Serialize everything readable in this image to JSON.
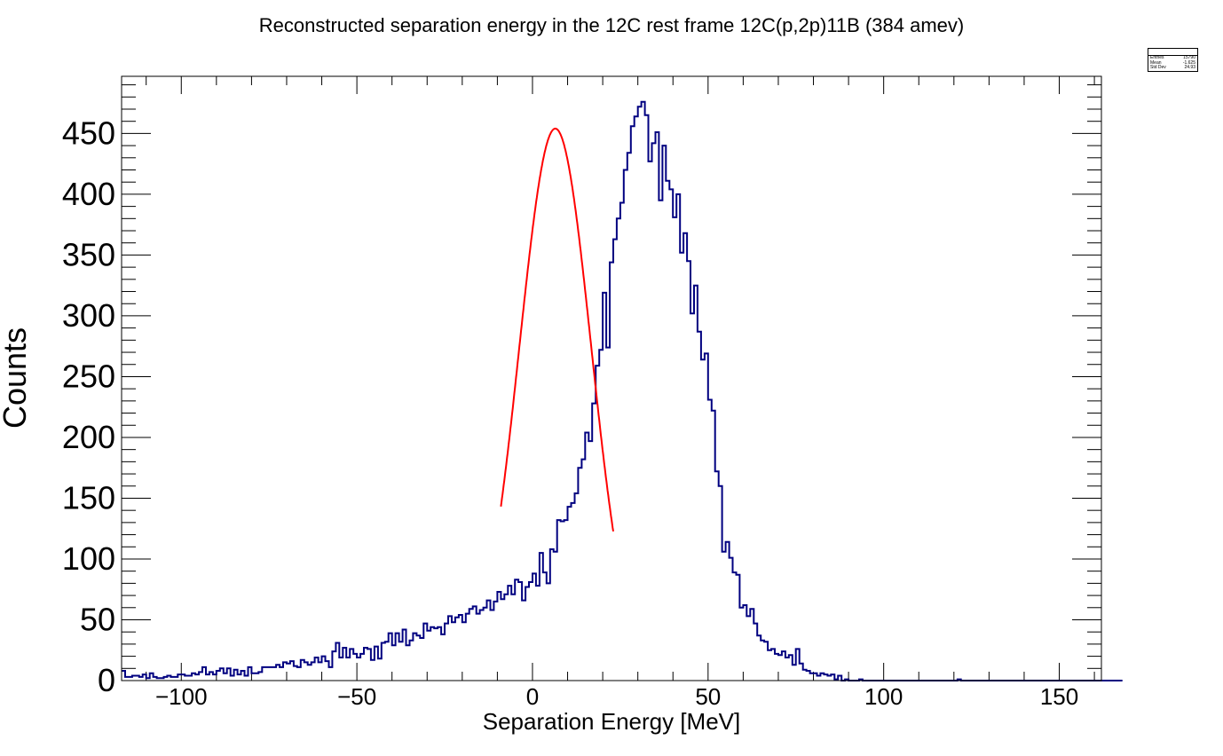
{
  "chart_data": {
    "type": "histogram",
    "title": "Reconstructed separation energy in the 12C rest frame 12C(p,2p)11B (384 amev)",
    "xlabel": "Separation Energy [MeV]",
    "ylabel": "Counts",
    "xlim": [
      -117,
      162
    ],
    "ylim": [
      0,
      497
    ],
    "x_ticks": [
      -100,
      -50,
      0,
      50,
      100,
      150
    ],
    "x_tick_labels": [
      "−100",
      "−50",
      "0",
      "50",
      "100",
      "150"
    ],
    "y_ticks": [
      0,
      50,
      100,
      150,
      200,
      250,
      300,
      350,
      400,
      450
    ],
    "y_tick_labels": [
      "0",
      "50",
      "100",
      "150",
      "200",
      "250",
      "300",
      "350",
      "400",
      "450"
    ],
    "bin_start": -117,
    "bin_width": 1,
    "series": [
      {
        "values": [
          8,
          3,
          3,
          4,
          4,
          3,
          5,
          2,
          6,
          3,
          2,
          2,
          3,
          4,
          3,
          3,
          5,
          5,
          4,
          4,
          6,
          5,
          7,
          11,
          5,
          7,
          5,
          8,
          10,
          6,
          10,
          4,
          9,
          5,
          8,
          4,
          11,
          6,
          6,
          7,
          11,
          11,
          11,
          11,
          13,
          11,
          15,
          14,
          16,
          12,
          11,
          17,
          15,
          13,
          15,
          19,
          15,
          20,
          16,
          11,
          24,
          31,
          19,
          27,
          19,
          26,
          22,
          19,
          22,
          27,
          26,
          17,
          28,
          18,
          31,
          32,
          39,
          29,
          39,
          32,
          42,
          29,
          33,
          39,
          37,
          35,
          47,
          41,
          44,
          43,
          44,
          38,
          47,
          53,
          48,
          52,
          54,
          48,
          55,
          59,
          61,
          55,
          58,
          60,
          66,
          58,
          65,
          73,
          67,
          71,
          78,
          71,
          83,
          81,
          66,
          77,
          81,
          88,
          78,
          105,
          89,
          80,
          108,
          106,
          132,
          131,
          132,
          143,
          146,
          154,
          175,
          182,
          204,
          197,
          228,
          259,
          272,
          319,
          274,
          344,
          363,
          380,
          393,
          420,
          434,
          456,
          464,
          472,
          476,
          465,
          427,
          442,
          451,
          395,
          440,
          411,
          404,
          381,
          400,
          352,
          368,
          345,
          302,
          325,
          287,
          264,
          269,
          231,
          222,
          172,
          160,
          106,
          114,
          101,
          89,
          87,
          60,
          62,
          53,
          59,
          47,
          37,
          33,
          32,
          25,
          26,
          22,
          21,
          24,
          19,
          21,
          13,
          26,
          14,
          9,
          8,
          6,
          6,
          4,
          6,
          5,
          4,
          5,
          1,
          4,
          0,
          1,
          0,
          0,
          0,
          1,
          0,
          0,
          0,
          0,
          0,
          0,
          0,
          0,
          0,
          0,
          0,
          0,
          0,
          0,
          0,
          0,
          0,
          0,
          0,
          0,
          0,
          0,
          0,
          0,
          0,
          0,
          0,
          1,
          0,
          0,
          0,
          0,
          0,
          0,
          0,
          0,
          0,
          0,
          0,
          0,
          0,
          0,
          0,
          0,
          0,
          0,
          0,
          0,
          0,
          0,
          0,
          0,
          0,
          0,
          0,
          0,
          0,
          0,
          0,
          0,
          0,
          0,
          0,
          0,
          0,
          0,
          0,
          0,
          0,
          0,
          0,
          0,
          0,
          0
        ]
      }
    ],
    "fit": {
      "type": "gaussian",
      "amplitude": 454,
      "mean": 6.5,
      "sigma": 10.2,
      "range": [
        -9,
        23
      ]
    },
    "stats": {
      "entries_label": "Entries",
      "entries": "15790",
      "mean_label": "Mean",
      "mean": "-1.625",
      "stddev_label": "Std Dev",
      "stddev": "24.93"
    },
    "colors": {
      "histogram": "#000080",
      "fit": "#ff0000",
      "axes": "#000000"
    }
  }
}
